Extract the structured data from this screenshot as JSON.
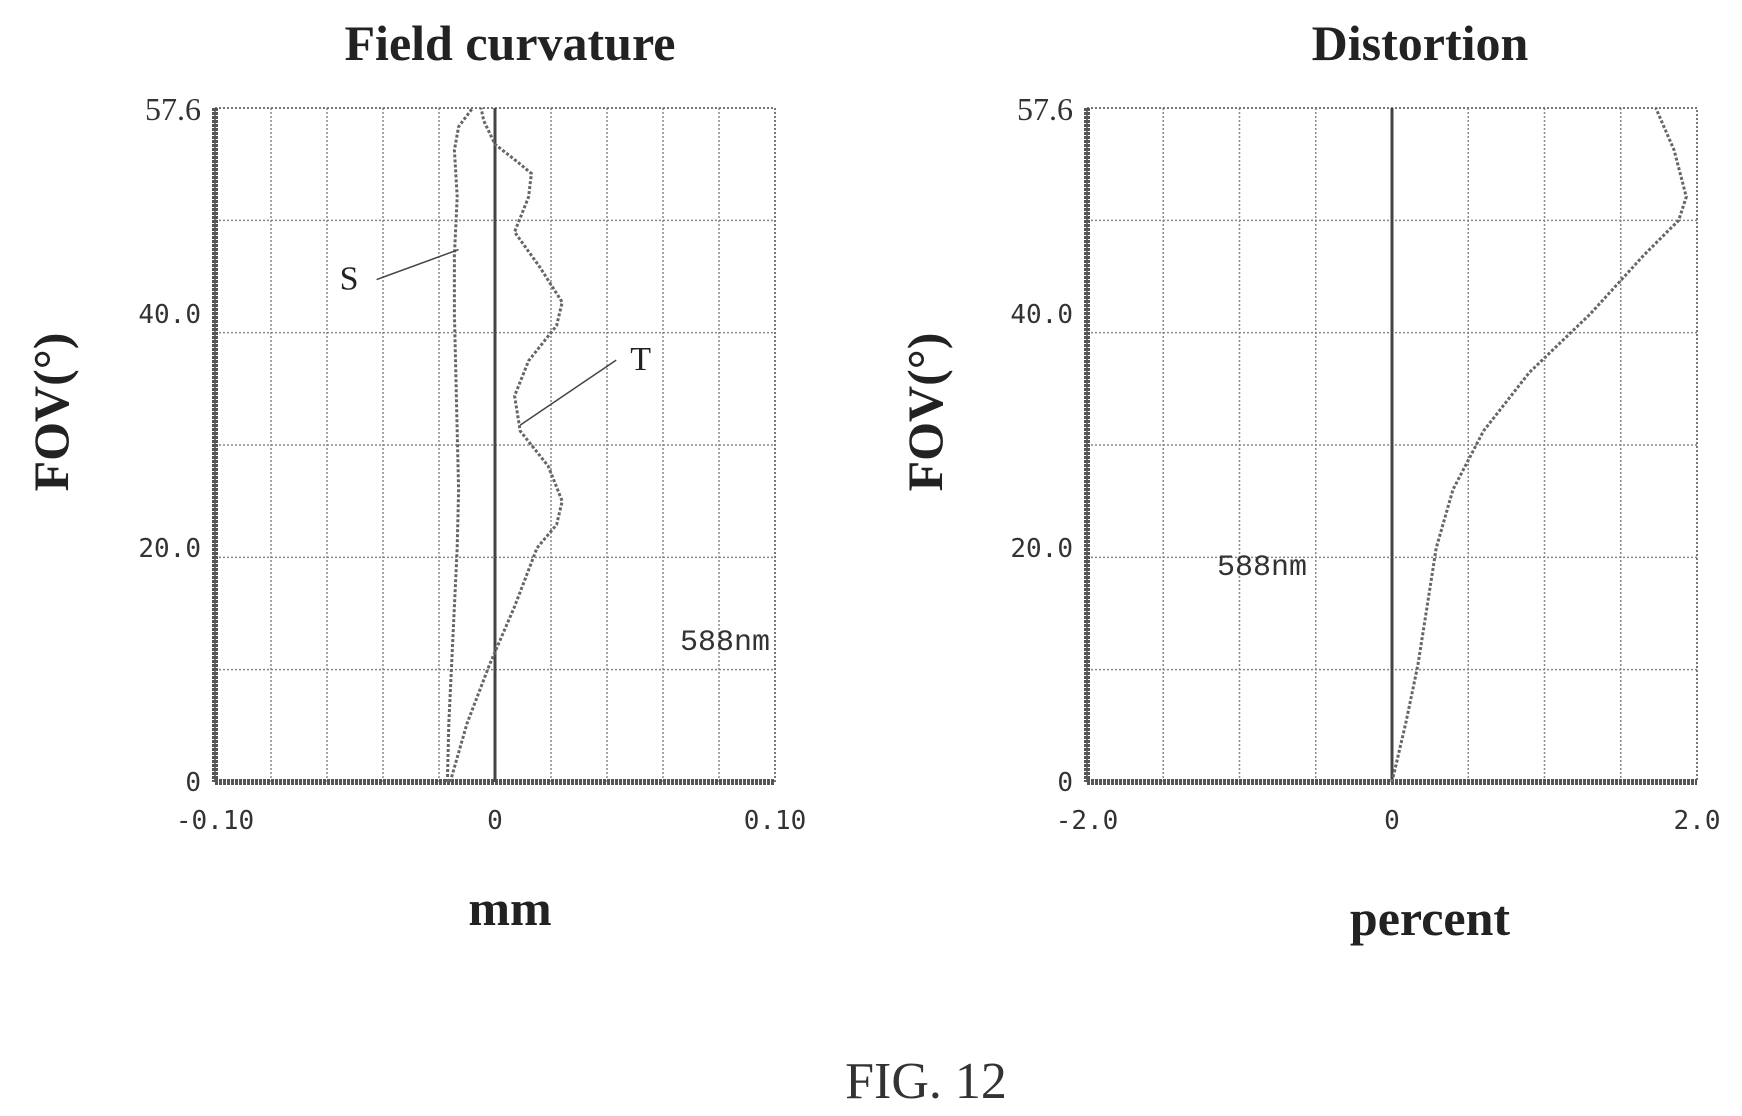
{
  "figure_caption": "FIG. 12",
  "chart_data": [
    {
      "type": "line",
      "title": "Field curvature",
      "xlabel": "mm",
      "ylabel": "FOV(°)",
      "xlim": [
        -0.1,
        0.1
      ],
      "ylim": [
        0,
        57.6
      ],
      "x_ticks": [
        -0.1,
        0,
        0.1
      ],
      "x_tick_labels": [
        "-0.10",
        "0",
        "0.10"
      ],
      "y_ticks": [
        0,
        20.0,
        40.0,
        57.6
      ],
      "y_tick_labels": [
        "0",
        "20.0",
        "40.0",
        "57.6"
      ],
      "x_grid_count": 10,
      "y_grid_count": 6,
      "grid": true,
      "wavelength_label": "588nm",
      "series": [
        {
          "name": "S",
          "points": [
            [
              -0.017,
              0
            ],
            [
              -0.0165,
              5
            ],
            [
              -0.0155,
              10
            ],
            [
              -0.0145,
              15
            ],
            [
              -0.0135,
              20
            ],
            [
              -0.013,
              25
            ],
            [
              -0.0135,
              30
            ],
            [
              -0.014,
              35
            ],
            [
              -0.0145,
              40
            ],
            [
              -0.0145,
              45
            ],
            [
              -0.0135,
              50
            ],
            [
              -0.0145,
              54
            ],
            [
              -0.013,
              56
            ],
            [
              -0.008,
              57.6
            ]
          ]
        },
        {
          "name": "T",
          "points": [
            [
              -0.016,
              0
            ],
            [
              -0.01,
              5
            ],
            [
              -0.002,
              10
            ],
            [
              0.007,
              15
            ],
            [
              0.015,
              20
            ],
            [
              0.022,
              22
            ],
            [
              0.024,
              24
            ],
            [
              0.019,
              27
            ],
            [
              0.009,
              30
            ],
            [
              0.007,
              33
            ],
            [
              0.012,
              36
            ],
            [
              0.022,
              39
            ],
            [
              0.024,
              41
            ],
            [
              0.016,
              44
            ],
            [
              0.007,
              47
            ],
            [
              0.012,
              50
            ],
            [
              0.013,
              52
            ],
            [
              0.008,
              53
            ],
            [
              0.0,
              54.5
            ],
            [
              -0.004,
              56.5
            ],
            [
              -0.005,
              57.6
            ]
          ]
        }
      ],
      "annotations": [
        {
          "text": "S",
          "point": [
            -0.013,
            45.5
          ]
        },
        {
          "text": "T",
          "point": [
            0.009,
            30.5
          ]
        }
      ]
    },
    {
      "type": "line",
      "title": "Distortion",
      "xlabel": "percent",
      "ylabel": "FOV(°)",
      "xlim": [
        -2.0,
        2.0
      ],
      "ylim": [
        0,
        57.6
      ],
      "x_ticks": [
        -2.0,
        0,
        2.0
      ],
      "x_tick_labels": [
        "-2.0",
        "0",
        "2.0"
      ],
      "y_ticks": [
        0,
        20.0,
        40.0,
        57.6
      ],
      "y_tick_labels": [
        "0",
        "20.0",
        "40.0",
        "57.6"
      ],
      "x_grid_count": 8,
      "y_grid_count": 6,
      "grid": true,
      "wavelength_label": "588nm",
      "series": [
        {
          "name": "",
          "points": [
            [
              0.0,
              0
            ],
            [
              0.09,
              5
            ],
            [
              0.17,
              10
            ],
            [
              0.23,
              15
            ],
            [
              0.29,
              20
            ],
            [
              0.4,
              25
            ],
            [
              0.6,
              30
            ],
            [
              0.9,
              35
            ],
            [
              1.3,
              40
            ],
            [
              1.65,
              45
            ],
            [
              1.88,
              48
            ],
            [
              1.93,
              50
            ],
            [
              1.85,
              54
            ],
            [
              1.73,
              57.6
            ]
          ]
        }
      ]
    }
  ]
}
